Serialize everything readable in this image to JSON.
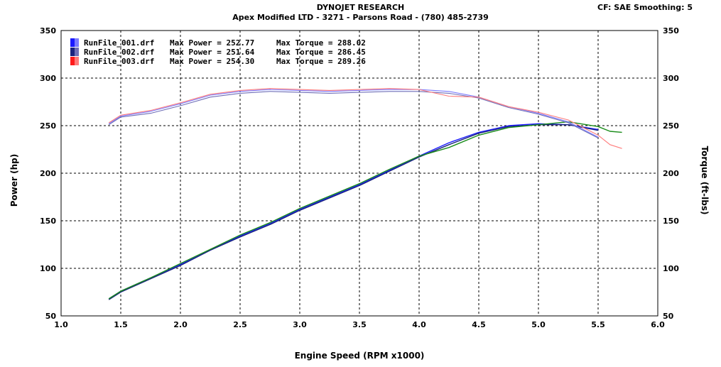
{
  "header": {
    "title": "DYNOJET RESEARCH",
    "subtitle": "Apex Modified LTD - 3271 - Parsons Road - (780) 485-2739",
    "settings": "CF: SAE  Smoothing: 5"
  },
  "chart_data": {
    "type": "line",
    "xlabel": "Engine Speed (RPM x1000)",
    "ylabel": "Power (hp)",
    "ylabel_right": "Torque (ft-lbs)",
    "xlim": [
      1.0,
      6.0
    ],
    "ylim": [
      50,
      350
    ],
    "ylim_right": [
      50,
      350
    ],
    "x_ticks": [
      "1.0",
      "1.5",
      "2.0",
      "2.5",
      "3.0",
      "3.5",
      "4.0",
      "4.5",
      "5.0",
      "5.5",
      "6.0"
    ],
    "y_ticks": [
      "50",
      "100",
      "150",
      "200",
      "250",
      "300",
      "350"
    ],
    "grid": true,
    "legend_position": "top-left",
    "legend": [
      {
        "file": "RunFile_001.drf",
        "power_text": "Max Power = 252.77",
        "torque_text": "Max Torque = 288.02",
        "color": "#1a1aff",
        "color2": "#7b7bff"
      },
      {
        "file": "RunFile_002.drf",
        "power_text": "Max Power = 251.64",
        "torque_text": "Max Torque = 286.45",
        "color": "#1a237e",
        "color2": "#6e6eb8"
      },
      {
        "file": "RunFile_003.drf",
        "power_text": "Max Power = 254.30",
        "torque_text": "Max Torque = 289.26",
        "color": "#ff1a1a",
        "color2": "#ff7b7b"
      }
    ],
    "series": [
      {
        "name": "RunFile_001.drf",
        "measure": "power",
        "color": "#1a1aff",
        "x": [
          1.4,
          1.5,
          1.75,
          2.0,
          2.25,
          2.5,
          2.75,
          3.0,
          3.25,
          3.5,
          3.75,
          4.0,
          4.25,
          4.5,
          4.75,
          5.0,
          5.25,
          5.5
        ],
        "y": [
          68,
          76,
          90,
          104,
          119,
          134,
          147,
          162,
          175,
          188,
          203,
          218,
          232,
          243,
          250,
          252,
          251,
          246
        ]
      },
      {
        "name": "RunFile_002.drf",
        "measure": "power",
        "color": "#1a237e",
        "x": [
          1.4,
          1.5,
          1.75,
          2.0,
          2.25,
          2.5,
          2.75,
          3.0,
          3.25,
          3.5,
          3.75,
          4.0,
          4.25,
          4.5,
          4.75,
          5.0,
          5.25,
          5.5
        ],
        "y": [
          67,
          75,
          89,
          103,
          119,
          133,
          146,
          161,
          174,
          187,
          202,
          217,
          230,
          242,
          249,
          251,
          251,
          245
        ]
      },
      {
        "name": "RunFile_003.drf",
        "measure": "power",
        "color": "#1a8c1a",
        "x": [
          1.4,
          1.5,
          1.75,
          2.0,
          2.25,
          2.5,
          2.75,
          3.0,
          3.25,
          3.5,
          3.75,
          4.0,
          4.25,
          4.5,
          4.75,
          5.0,
          5.25,
          5.5,
          5.6,
          5.7
        ],
        "y": [
          68,
          76,
          90,
          105,
          120,
          135,
          148,
          163,
          176,
          189,
          204,
          218,
          227,
          240,
          248,
          251,
          254,
          249,
          244,
          243
        ]
      },
      {
        "name": "RunFile_001.drf",
        "measure": "torque",
        "color": "#7b7bff",
        "x": [
          1.4,
          1.5,
          1.75,
          2.0,
          2.25,
          2.5,
          2.75,
          3.0,
          3.25,
          3.5,
          3.75,
          4.0,
          4.25,
          4.5,
          4.75,
          5.0,
          5.25,
          5.5
        ],
        "y": [
          252,
          260,
          265,
          273,
          282,
          286,
          288,
          287,
          286,
          287,
          288,
          288,
          286,
          280,
          270,
          263,
          254,
          238
        ]
      },
      {
        "name": "RunFile_002.drf",
        "measure": "torque",
        "color": "#6e6eb8",
        "x": [
          1.4,
          1.5,
          1.75,
          2.0,
          2.25,
          2.5,
          2.75,
          3.0,
          3.25,
          3.5,
          3.75,
          4.0,
          4.25,
          4.5,
          4.75,
          5.0,
          5.25,
          5.5
        ],
        "y": [
          251,
          259,
          263,
          271,
          280,
          284,
          286,
          285,
          284,
          285,
          286,
          286,
          284,
          279,
          269,
          262,
          253,
          237
        ]
      },
      {
        "name": "RunFile_003.drf",
        "measure": "torque",
        "color": "#ff7b7b",
        "x": [
          1.4,
          1.5,
          1.75,
          2.0,
          2.25,
          2.5,
          2.75,
          3.0,
          3.25,
          3.5,
          3.75,
          4.0,
          4.25,
          4.5,
          4.75,
          5.0,
          5.25,
          5.5,
          5.6,
          5.7
        ],
        "y": [
          253,
          261,
          266,
          274,
          283,
          287,
          289,
          288,
          287,
          288,
          289,
          288,
          281,
          280,
          270,
          264,
          256,
          240,
          230,
          226
        ]
      }
    ]
  }
}
